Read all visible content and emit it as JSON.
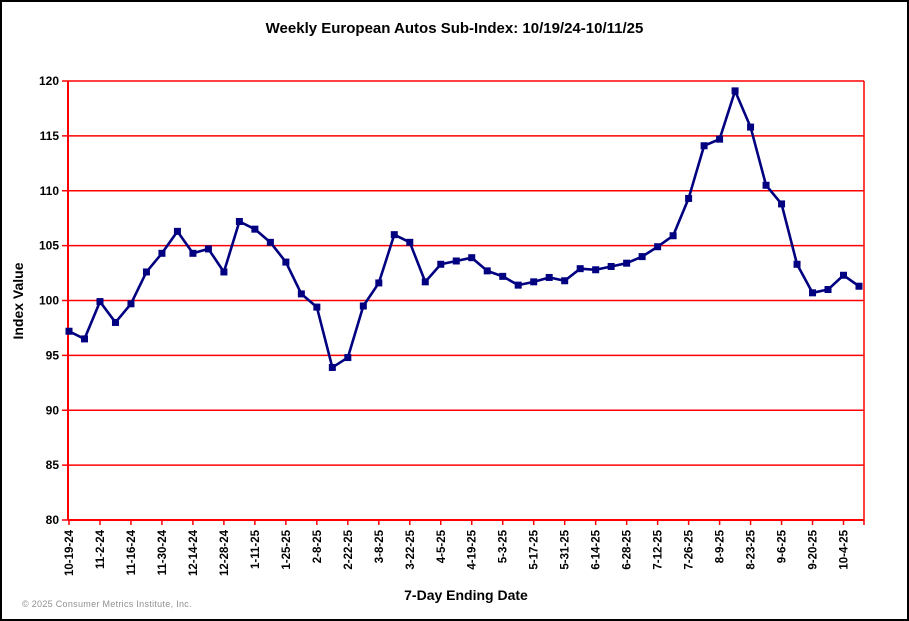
{
  "window": {
    "background": "#FFFFFF",
    "border_color": "#000000"
  },
  "footer": {
    "copyright": "© 2025 Consumer Metrics Institute, Inc."
  },
  "chart_data": {
    "type": "line",
    "title": "Weekly European Autos Sub-Index: 10/19/24-10/11/25",
    "xlabel": "7-Day Ending Date",
    "ylabel": "Index Value",
    "ylim": [
      80,
      120
    ],
    "yticks": [
      80,
      85,
      90,
      95,
      100,
      105,
      110,
      115,
      120
    ],
    "grid": "horizontal",
    "legend": "none",
    "axis_color": "#FF0000",
    "line_color": "#000080",
    "marker": "square",
    "x_tick_label_every": 2,
    "x": [
      "10-19-24",
      "10-26-24",
      "11-2-24",
      "11-9-24",
      "11-16-24",
      "11-23-24",
      "11-30-24",
      "12-7-24",
      "12-14-24",
      "12-21-24",
      "12-28-24",
      "1-4-25",
      "1-11-25",
      "1-18-25",
      "1-25-25",
      "2-1-25",
      "2-8-25",
      "2-15-25",
      "2-22-25",
      "3-1-25",
      "3-8-25",
      "3-15-25",
      "3-22-25",
      "3-29-25",
      "4-5-25",
      "4-12-25",
      "4-19-25",
      "4-26-25",
      "5-3-25",
      "5-10-25",
      "5-17-25",
      "5-24-25",
      "5-31-25",
      "6-7-25",
      "6-14-25",
      "6-21-25",
      "6-28-25",
      "7-5-25",
      "7-12-25",
      "7-19-25",
      "7-26-25",
      "8-2-25",
      "8-9-25",
      "8-16-25",
      "8-23-25",
      "8-30-25",
      "9-6-25",
      "9-13-25",
      "9-20-25",
      "9-27-25",
      "10-4-25",
      "10-11-25"
    ],
    "values": [
      97.2,
      96.5,
      99.9,
      98.0,
      99.7,
      102.6,
      104.3,
      106.3,
      104.3,
      104.7,
      102.6,
      107.2,
      106.5,
      105.3,
      103.5,
      100.6,
      99.4,
      93.9,
      94.8,
      99.5,
      101.6,
      106.0,
      105.3,
      101.7,
      103.3,
      103.6,
      103.9,
      102.7,
      102.2,
      101.4,
      101.7,
      102.1,
      101.8,
      102.9,
      102.8,
      103.1,
      103.4,
      104.0,
      104.9,
      105.9,
      109.3,
      114.1,
      114.7,
      119.1,
      115.8,
      110.5,
      108.8,
      103.3,
      100.7,
      101.0,
      102.3,
      101.3
    ]
  }
}
